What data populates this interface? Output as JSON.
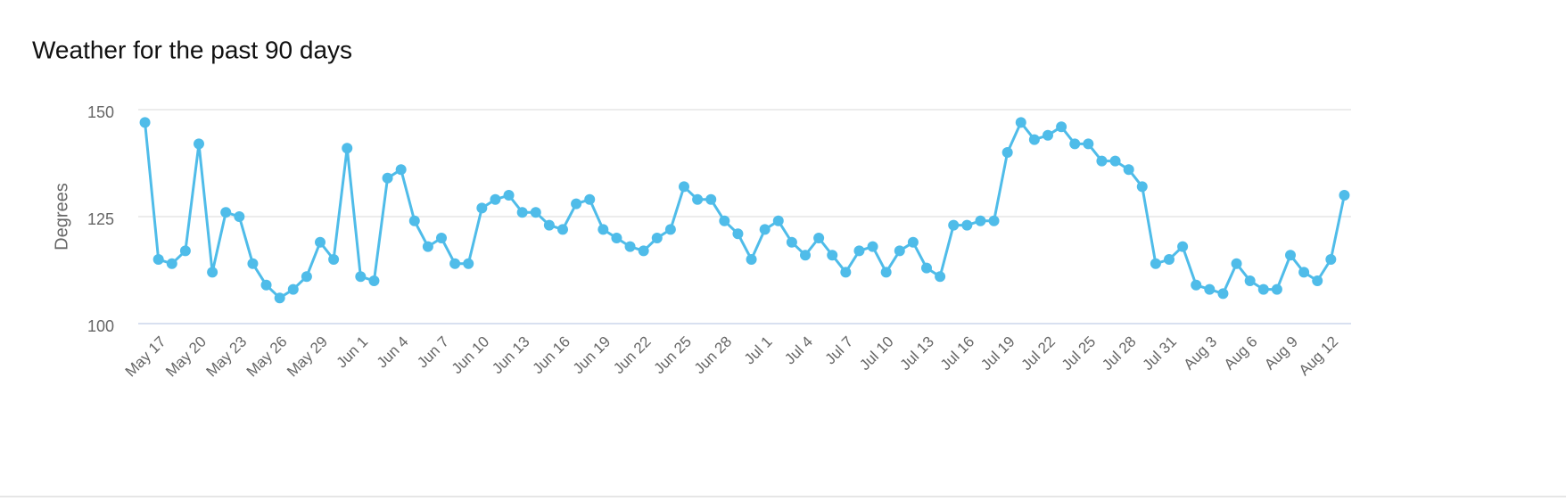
{
  "chart_data": {
    "type": "line",
    "title": "Weather for the past 90 days",
    "ylabel": "Degrees",
    "categories": [
      null,
      "May 17",
      null,
      null,
      "May 20",
      null,
      null,
      "May 23",
      null,
      null,
      "May 26",
      null,
      null,
      "May 29",
      null,
      null,
      "Jun 1",
      null,
      null,
      "Jun 4",
      null,
      null,
      "Jun 7",
      null,
      null,
      "Jun 10",
      null,
      null,
      "Jun 13",
      null,
      null,
      "Jun 16",
      null,
      null,
      "Jun 19",
      null,
      null,
      "Jun 22",
      null,
      null,
      "Jun 25",
      null,
      null,
      "Jun 28",
      null,
      null,
      "Jul 1",
      null,
      null,
      "Jul 4",
      null,
      null,
      "Jul 7",
      null,
      null,
      "Jul 10",
      null,
      null,
      "Jul 13",
      null,
      null,
      "Jul 16",
      null,
      null,
      "Jul 19",
      null,
      null,
      "Jul 22",
      null,
      null,
      "Jul 25",
      null,
      null,
      "Jul 28",
      null,
      null,
      "Jul 31",
      null,
      null,
      "Aug 3",
      null,
      null,
      "Aug 6",
      null,
      null,
      "Aug 9",
      null,
      null,
      "Aug 12",
      null
    ],
    "values": [
      147,
      115,
      114,
      117,
      142,
      112,
      126,
      125,
      114,
      109,
      106,
      108,
      111,
      119,
      115,
      141,
      111,
      110,
      134,
      136,
      124,
      118,
      120,
      114,
      114,
      127,
      129,
      130,
      126,
      126,
      123,
      122,
      128,
      129,
      122,
      120,
      118,
      117,
      120,
      122,
      132,
      129,
      129,
      124,
      121,
      115,
      122,
      124,
      119,
      116,
      120,
      116,
      112,
      117,
      118,
      112,
      117,
      119,
      113,
      111,
      123,
      123,
      124,
      124,
      140,
      147,
      143,
      144,
      146,
      142,
      142,
      138,
      138,
      136,
      132,
      114,
      115,
      118,
      109,
      108,
      107,
      114,
      110,
      108,
      108,
      116,
      112,
      110,
      115,
      130
    ],
    "color": "#4fbce9",
    "ylim": [
      100,
      150
    ],
    "yticks": [
      100,
      125,
      150
    ],
    "grid": true
  }
}
